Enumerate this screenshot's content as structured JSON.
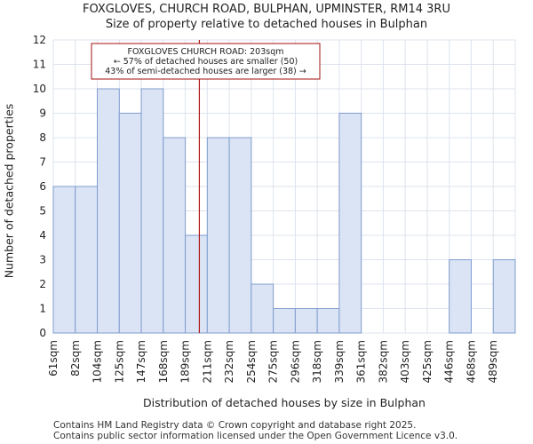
{
  "chart_data": {
    "type": "bar",
    "title": "FOXGLOVES, CHURCH ROAD, BULPHAN, UPMINSTER, RM14 3RU",
    "subtitle": "Size of property relative to detached houses in Bulphan",
    "xlabel": "Distribution of detached houses by size in Bulphan",
    "ylabel": "Number of detached properties",
    "categories": [
      "61sqm",
      "82sqm",
      "104sqm",
      "125sqm",
      "147sqm",
      "168sqm",
      "189sqm",
      "211sqm",
      "232sqm",
      "254sqm",
      "275sqm",
      "296sqm",
      "318sqm",
      "339sqm",
      "361sqm",
      "382sqm",
      "403sqm",
      "425sqm",
      "446sqm",
      "468sqm",
      "489sqm"
    ],
    "values": [
      6,
      6,
      10,
      9,
      10,
      8,
      4,
      8,
      8,
      2,
      1,
      1,
      1,
      9,
      0,
      0,
      0,
      0,
      3,
      0,
      3
    ],
    "ylim": [
      0,
      12
    ],
    "yticks": [
      0,
      1,
      2,
      3,
      4,
      5,
      6,
      7,
      8,
      9,
      10,
      11,
      12
    ],
    "grid": true,
    "marker_value_index": 6.64,
    "annotation": {
      "line1": "FOXGLOVES CHURCH ROAD: 203sqm",
      "line2": "← 57% of detached houses are smaller (50)",
      "line3": "43% of semi-detached houses are larger (38) →"
    },
    "colors": {
      "bar_fill": "#dbe4f5",
      "bar_edge": "#7f9cce",
      "marker": "#b01818"
    }
  },
  "footer": {
    "line1": "Contains HM Land Registry data © Crown copyright and database right 2025.",
    "line2": "Contains public sector information licensed under the Open Government Licence v3.0."
  }
}
